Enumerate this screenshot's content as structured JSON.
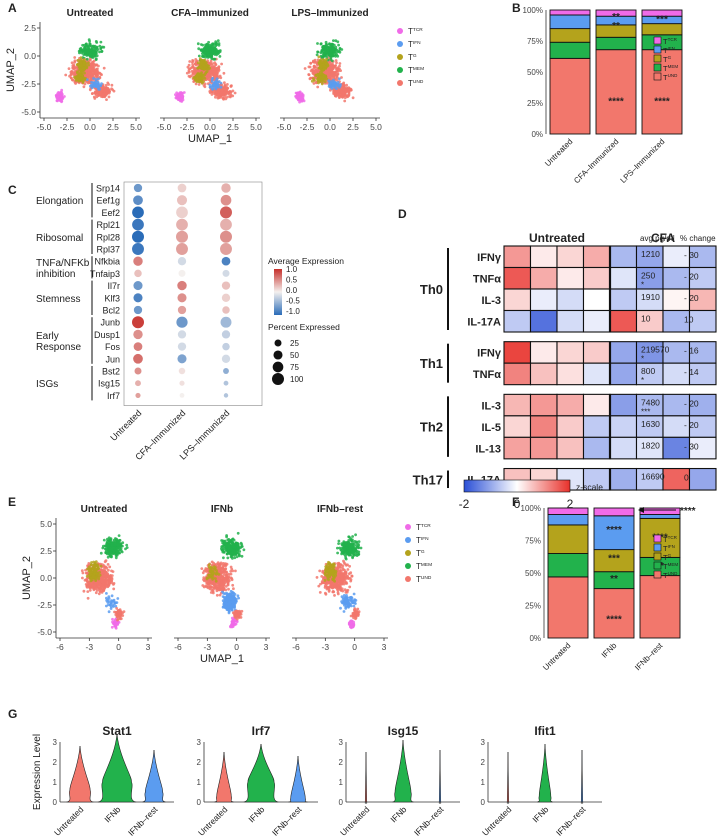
{
  "panel_letters": [
    "A",
    "B",
    "C",
    "D",
    "E",
    "F",
    "G"
  ],
  "colors": {
    "TCR": "#f06be8",
    "IFN": "#5b9cf0",
    "TG": "#b4a31c",
    "MEM": "#22b24c",
    "UND": "#f2776c",
    "heat_low": "#2a4fd6",
    "heat_mid": "#ffffff",
    "heat_high": "#e8302a",
    "dot_high": "#c62f2a",
    "dot_low": "#2a6cb8"
  },
  "chart_data": [
    {
      "id": "A",
      "type": "scatter",
      "subtype": "umap",
      "facets": [
        "Untreated",
        "CFA–Immunized",
        "LPS–Immunized"
      ],
      "xlabel": "UMAP_1",
      "ylabel": "UMAP_2",
      "xticks": [
        "-5.0",
        "-2.5",
        "0.0",
        "2.5",
        "5.0"
      ],
      "yticks": [
        "2.5",
        "0.0",
        "-2.5",
        "-5.0"
      ],
      "legend": [
        {
          "key": "TCR",
          "base": "T",
          "sup": "TCR"
        },
        {
          "key": "IFN",
          "base": "T",
          "sup": "IFN"
        },
        {
          "key": "TG",
          "base": "T",
          "sup": "G"
        },
        {
          "key": "MEM",
          "base": "T",
          "sup": "MEM"
        },
        {
          "key": "UND",
          "base": "T",
          "sup": "UND"
        }
      ]
    },
    {
      "id": "B",
      "type": "bar",
      "subtype": "stacked-percent",
      "categories": [
        "Untreated",
        "CFA–Immunized",
        "LPS–Immunized"
      ],
      "yticks": [
        "0%",
        "25%",
        "50%",
        "75%",
        "100%"
      ],
      "series": [
        {
          "name": "UND",
          "values": [
            61,
            68,
            68
          ]
        },
        {
          "name": "MEM",
          "values": [
            13,
            10,
            12
          ]
        },
        {
          "name": "TG",
          "values": [
            11,
            10,
            9
          ]
        },
        {
          "name": "IFN",
          "values": [
            11,
            7,
            6
          ]
        },
        {
          "name": "TCR",
          "values": [
            4,
            5,
            5
          ]
        }
      ],
      "annotations": [
        {
          "category": 1,
          "y": 88,
          "text": "**"
        },
        {
          "category": 2,
          "y": 93,
          "text": "***"
        },
        {
          "category": 1,
          "y": 95,
          "text": "**"
        },
        {
          "category": 1,
          "y": 27,
          "text": "****"
        },
        {
          "category": 2,
          "y": 27,
          "text": "****"
        }
      ],
      "legend": [
        {
          "key": "TCR",
          "base": "T",
          "sup": "TCR"
        },
        {
          "key": "IFN",
          "base": "T",
          "sup": "IFN"
        },
        {
          "key": "TG",
          "base": "T",
          "sup": "G"
        },
        {
          "key": "MEM",
          "base": "T",
          "sup": "MEM"
        },
        {
          "key": "UND",
          "base": "T",
          "sup": "UND"
        }
      ]
    },
    {
      "id": "C",
      "type": "scatter",
      "subtype": "dot-plot",
      "conditions": [
        "Untreated",
        "CFA–Immunized",
        "LPS–Immunized"
      ],
      "genes": [
        "Srp14",
        "Eef1g",
        "Eef2",
        "Rpl21",
        "Rpl28",
        "Rpl37",
        "Nfkbia",
        "Tnfaip3",
        "Il7r",
        "Klf3",
        "Bcl2",
        "Junb",
        "Dusp1",
        "Fos",
        "Jun",
        "Bst2",
        "Isg15",
        "Irf7"
      ],
      "groups": [
        {
          "label": "Elongation",
          "from": 0,
          "to": 2
        },
        {
          "label": "Ribosomal",
          "from": 3,
          "to": 5
        },
        {
          "label": "TNFa/NFKb inhibition",
          "from": 6,
          "to": 7
        },
        {
          "label": "Stemness",
          "from": 8,
          "to": 10
        },
        {
          "label": "Early Response",
          "from": 11,
          "to": 14
        },
        {
          "label": "ISGs",
          "from": 15,
          "to": 17
        }
      ],
      "expression": [
        [
          -0.8,
          0.2,
          0.4
        ],
        [
          -0.9,
          0.3,
          0.6
        ],
        [
          -1.2,
          0.2,
          0.9
        ],
        [
          -1.1,
          0.4,
          0.4
        ],
        [
          -1.2,
          0.5,
          0.6
        ],
        [
          -1.1,
          0.5,
          0.5
        ],
        [
          0.7,
          -0.2,
          -1.0
        ],
        [
          0.3,
          0.0,
          -0.2
        ],
        [
          -0.8,
          0.7,
          0.3
        ],
        [
          -1.0,
          0.6,
          0.2
        ],
        [
          -0.8,
          0.5,
          0.3
        ],
        [
          1.1,
          -0.8,
          -0.5
        ],
        [
          0.6,
          -0.2,
          -0.3
        ],
        [
          0.7,
          -0.2,
          -0.3
        ],
        [
          0.8,
          -0.7,
          -0.2
        ],
        [
          0.6,
          0.1,
          -0.6
        ],
        [
          0.4,
          0.1,
          -0.4
        ],
        [
          0.5,
          0.0,
          -0.4
        ]
      ],
      "percent": [
        [
          40,
          45,
          55
        ],
        [
          60,
          65,
          75
        ],
        [
          95,
          95,
          100
        ],
        [
          95,
          95,
          95
        ],
        [
          100,
          100,
          100
        ],
        [
          98,
          98,
          98
        ],
        [
          55,
          40,
          45
        ],
        [
          30,
          25,
          25
        ],
        [
          50,
          55,
          40
        ],
        [
          50,
          50,
          40
        ],
        [
          40,
          40,
          30
        ],
        [
          100,
          85,
          80
        ],
        [
          55,
          40,
          40
        ],
        [
          45,
          40,
          30
        ],
        [
          60,
          50,
          40
        ],
        [
          25,
          20,
          15
        ],
        [
          15,
          10,
          8
        ],
        [
          10,
          8,
          6
        ]
      ],
      "color_legend": {
        "title": "Average Expression",
        "ticks": [
          "1.0",
          "0.5",
          "0.0",
          "-0.5",
          "-1.0"
        ],
        "range": [
          -1,
          1
        ]
      },
      "size_legend": {
        "title": "Percent Expressed",
        "values": [
          25,
          50,
          75,
          100
        ]
      }
    },
    {
      "id": "D",
      "type": "heatmap",
      "column_groups": [
        "Untreated",
        "CFA"
      ],
      "rows": [
        {
          "label": "IFNγ",
          "avg": "1210",
          "star": "",
          "change": "- 30"
        },
        {
          "label": "TNFα",
          "avg": "250",
          "star": "*",
          "change": "- 20"
        },
        {
          "label": "IL-3",
          "avg": "1910",
          "star": "",
          "change": "- 20"
        },
        {
          "label": "IL-17A",
          "avg": "10",
          "star": "",
          "change": "10"
        },
        {
          "label": "IFNγ",
          "avg": "219570",
          "star": "*",
          "change": "- 16"
        },
        {
          "label": "TNFα",
          "avg": "800",
          "star": "*",
          "change": "- 14"
        },
        {
          "label": "IL-3",
          "avg": "7480",
          "star": "***",
          "change": "- 20"
        },
        {
          "label": "IL-5",
          "avg": "1630",
          "star": "",
          "change": "- 20"
        },
        {
          "label": "IL-13",
          "avg": "1820",
          "star": "",
          "change": "- 30"
        },
        {
          "label": "IL-17A",
          "avg": "16690",
          "star": "",
          "change": "0"
        }
      ],
      "row_groups": [
        {
          "label": "Th0",
          "from": 0,
          "to": 3
        },
        {
          "label": "Th1",
          "from": 4,
          "to": 5
        },
        {
          "label": "Th2",
          "from": 6,
          "to": 8
        },
        {
          "label": "Th17",
          "from": 9,
          "to": 9
        }
      ],
      "values": [
        [
          1.0,
          0.2,
          0.4,
          0.8,
          -0.8,
          -1.0,
          -0.2,
          -0.8
        ],
        [
          1.6,
          0.8,
          0.2,
          0.5,
          -0.3,
          -1.1,
          -0.8,
          -0.6
        ],
        [
          0.4,
          -0.2,
          -0.4,
          0.0,
          -0.6,
          -0.4,
          0.1,
          0.7
        ],
        [
          -0.6,
          -1.6,
          -0.4,
          -0.2,
          1.6,
          0.5,
          -0.8,
          -0.6
        ],
        [
          1.8,
          0.2,
          0.4,
          0.5,
          -1.0,
          -1.2,
          -0.8,
          -0.8
        ],
        [
          1.2,
          0.6,
          0.3,
          -0.3,
          -1.0,
          -0.6,
          -0.4,
          -0.6
        ],
        [
          0.7,
          1.0,
          0.8,
          0.2,
          -1.1,
          -0.8,
          -0.8,
          -0.9
        ],
        [
          0.4,
          1.2,
          0.5,
          -0.6,
          -0.5,
          -0.6,
          -0.4,
          -0.6
        ],
        [
          0.9,
          1.0,
          0.6,
          -0.8,
          -0.4,
          -0.3,
          -1.4,
          -0.2
        ],
        [
          0.6,
          0.4,
          -0.3,
          -0.6,
          -0.9,
          -0.6,
          1.5,
          -1.0
        ]
      ],
      "header_avg": "avg pg/ml",
      "header_change": "% change",
      "scale": {
        "ticks": [
          "-2",
          "0",
          "2"
        ],
        "label": "z-scale",
        "range": [
          -2,
          2
        ]
      }
    },
    {
      "id": "E",
      "type": "scatter",
      "subtype": "umap",
      "facets": [
        "Untreated",
        "IFNb",
        "IFNb–rest"
      ],
      "xlabel": "UMAP_1",
      "ylabel": "UMAP_2",
      "xticks": [
        "-6",
        "-3",
        "0",
        "3"
      ],
      "yticks": [
        "5.0",
        "2.5",
        "0.0",
        "-2.5",
        "-5.0"
      ],
      "legend": [
        {
          "key": "TCR",
          "base": "T",
          "sup": "TCR"
        },
        {
          "key": "IFN",
          "base": "T",
          "sup": "IFN"
        },
        {
          "key": "TG",
          "base": "T",
          "sup": "G"
        },
        {
          "key": "MEM",
          "base": "T",
          "sup": "MEM"
        },
        {
          "key": "UND",
          "base": "T",
          "sup": "UND"
        }
      ]
    },
    {
      "id": "F",
      "type": "bar",
      "subtype": "stacked-percent",
      "categories": [
        "Untreated",
        "IFNb",
        "IFNb–rest"
      ],
      "yticks": [
        "0%",
        "25%",
        "50%",
        "75%",
        "100%"
      ],
      "series": [
        {
          "name": "UND",
          "values": [
            47,
            38,
            48
          ]
        },
        {
          "name": "MEM",
          "values": [
            18,
            13,
            14
          ]
        },
        {
          "name": "TG",
          "values": [
            22,
            17,
            30
          ]
        },
        {
          "name": "IFN",
          "values": [
            8,
            26,
            3
          ]
        },
        {
          "name": "TCR",
          "values": [
            5,
            6,
            5
          ]
        }
      ],
      "annotations": [
        {
          "category": 1,
          "y": 84,
          "text": "****"
        },
        {
          "category": 1,
          "y": 62,
          "text": "***"
        },
        {
          "category": 1,
          "y": 46,
          "text": "**"
        },
        {
          "category": 1,
          "y": 15,
          "text": "****"
        },
        {
          "category": 2,
          "y": 78,
          "text": "****"
        },
        {
          "category": 2,
          "y": 56,
          "text": "**"
        }
      ],
      "arrow_label": "****",
      "legend": [
        {
          "key": "TCR",
          "base": "T",
          "sup": "TCR"
        },
        {
          "key": "IFN",
          "base": "T",
          "sup": "IFN"
        },
        {
          "key": "TG",
          "base": "T",
          "sup": "G"
        },
        {
          "key": "MEM",
          "base": "T",
          "sup": "MEM"
        },
        {
          "key": "UND",
          "base": "T",
          "sup": "UND"
        }
      ]
    },
    {
      "id": "G",
      "type": "violin",
      "ylabel": "Expression Level",
      "categories": [
        "Untreated",
        "IFNb",
        "IFNb–rest"
      ],
      "plots": [
        {
          "gene": "Stat1",
          "ymax": 3,
          "yticks": [
            "0",
            "1",
            "2",
            "3"
          ],
          "medians": [
            0.6,
            1.0,
            0.5
          ],
          "maxes": [
            2.8,
            3.4,
            2.6
          ],
          "widths": [
            0.7,
            1.0,
            0.6
          ]
        },
        {
          "gene": "Irf7",
          "ymax": 3,
          "yticks": [
            "0",
            "1",
            "2",
            "3"
          ],
          "medians": [
            0.3,
            1.0,
            0.2
          ],
          "maxes": [
            2.5,
            2.9,
            2.3
          ],
          "widths": [
            0.5,
            0.9,
            0.5
          ]
        },
        {
          "gene": "Isg15",
          "ymax": 3,
          "yticks": [
            "0",
            "1",
            "2",
            "3"
          ],
          "medians": [
            0.0,
            0.5,
            0.0
          ],
          "maxes": [
            2.5,
            3.1,
            2.6
          ],
          "widths": [
            0.05,
            0.55,
            0.05
          ]
        },
        {
          "gene": "Ifit1",
          "ymax": 3,
          "yticks": [
            "0",
            "1",
            "2",
            "3"
          ],
          "medians": [
            0.0,
            0.3,
            0.0
          ],
          "maxes": [
            2.5,
            2.9,
            2.6
          ],
          "widths": [
            0.05,
            0.4,
            0.05
          ]
        }
      ]
    }
  ]
}
